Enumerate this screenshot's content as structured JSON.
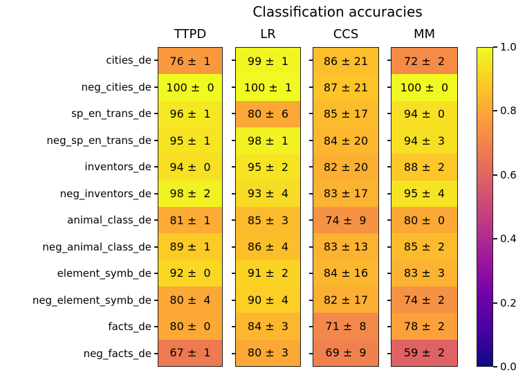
{
  "title": "Classification accuracies",
  "colors": {
    "background": "#ffffff",
    "text": "#000000",
    "axis_border": "#1a1a1a"
  },
  "chart_data": {
    "type": "heatmap",
    "title": "Classification accuracies",
    "columns": [
      "TTPD",
      "LR",
      "CCS",
      "MM"
    ],
    "rows": [
      "cities_de",
      "neg_cities_de",
      "sp_en_trans_de",
      "neg_sp_en_trans_de",
      "inventors_de",
      "neg_inventors_de",
      "animal_class_de",
      "neg_animal_class_de",
      "element_symb_de",
      "neg_element_symb_de",
      "facts_de",
      "neg_facts_de"
    ],
    "cells": {
      "values": [
        [
          76,
          99,
          86,
          72
        ],
        [
          100,
          100,
          87,
          100
        ],
        [
          96,
          80,
          85,
          94
        ],
        [
          95,
          98,
          84,
          94
        ],
        [
          94,
          95,
          82,
          88
        ],
        [
          98,
          93,
          83,
          95
        ],
        [
          81,
          85,
          74,
          80
        ],
        [
          89,
          86,
          83,
          85
        ],
        [
          92,
          91,
          84,
          83
        ],
        [
          80,
          90,
          82,
          74
        ],
        [
          80,
          84,
          71,
          78
        ],
        [
          67,
          80,
          69,
          59
        ]
      ],
      "errors": [
        [
          1,
          1,
          21,
          2
        ],
        [
          0,
          1,
          21,
          0
        ],
        [
          1,
          6,
          17,
          0
        ],
        [
          1,
          1,
          20,
          3
        ],
        [
          0,
          2,
          20,
          2
        ],
        [
          2,
          4,
          17,
          4
        ],
        [
          1,
          3,
          9,
          0
        ],
        [
          1,
          4,
          13,
          2
        ],
        [
          0,
          2,
          16,
          3
        ],
        [
          4,
          4,
          17,
          2
        ],
        [
          0,
          3,
          8,
          2
        ],
        [
          1,
          3,
          9,
          2
        ]
      ]
    },
    "cell_format": "value ± error",
    "value_units": "percent accuracy",
    "colorbar": {
      "tick_labels": [
        "1.0",
        "0.8",
        "0.6",
        "0.4",
        "0.2",
        "0.0"
      ],
      "vmin": 0.0,
      "vmax": 1.0,
      "position": "right"
    },
    "colormap": {
      "name": "plasma",
      "stops": [
        "#0d0887",
        "#46039f",
        "#7201a8",
        "#9c179e",
        "#bd3786",
        "#d8576b",
        "#ed7953",
        "#fb9f3a",
        "#fdca26",
        "#f0f921"
      ]
    },
    "grid": false,
    "legend": "none"
  }
}
